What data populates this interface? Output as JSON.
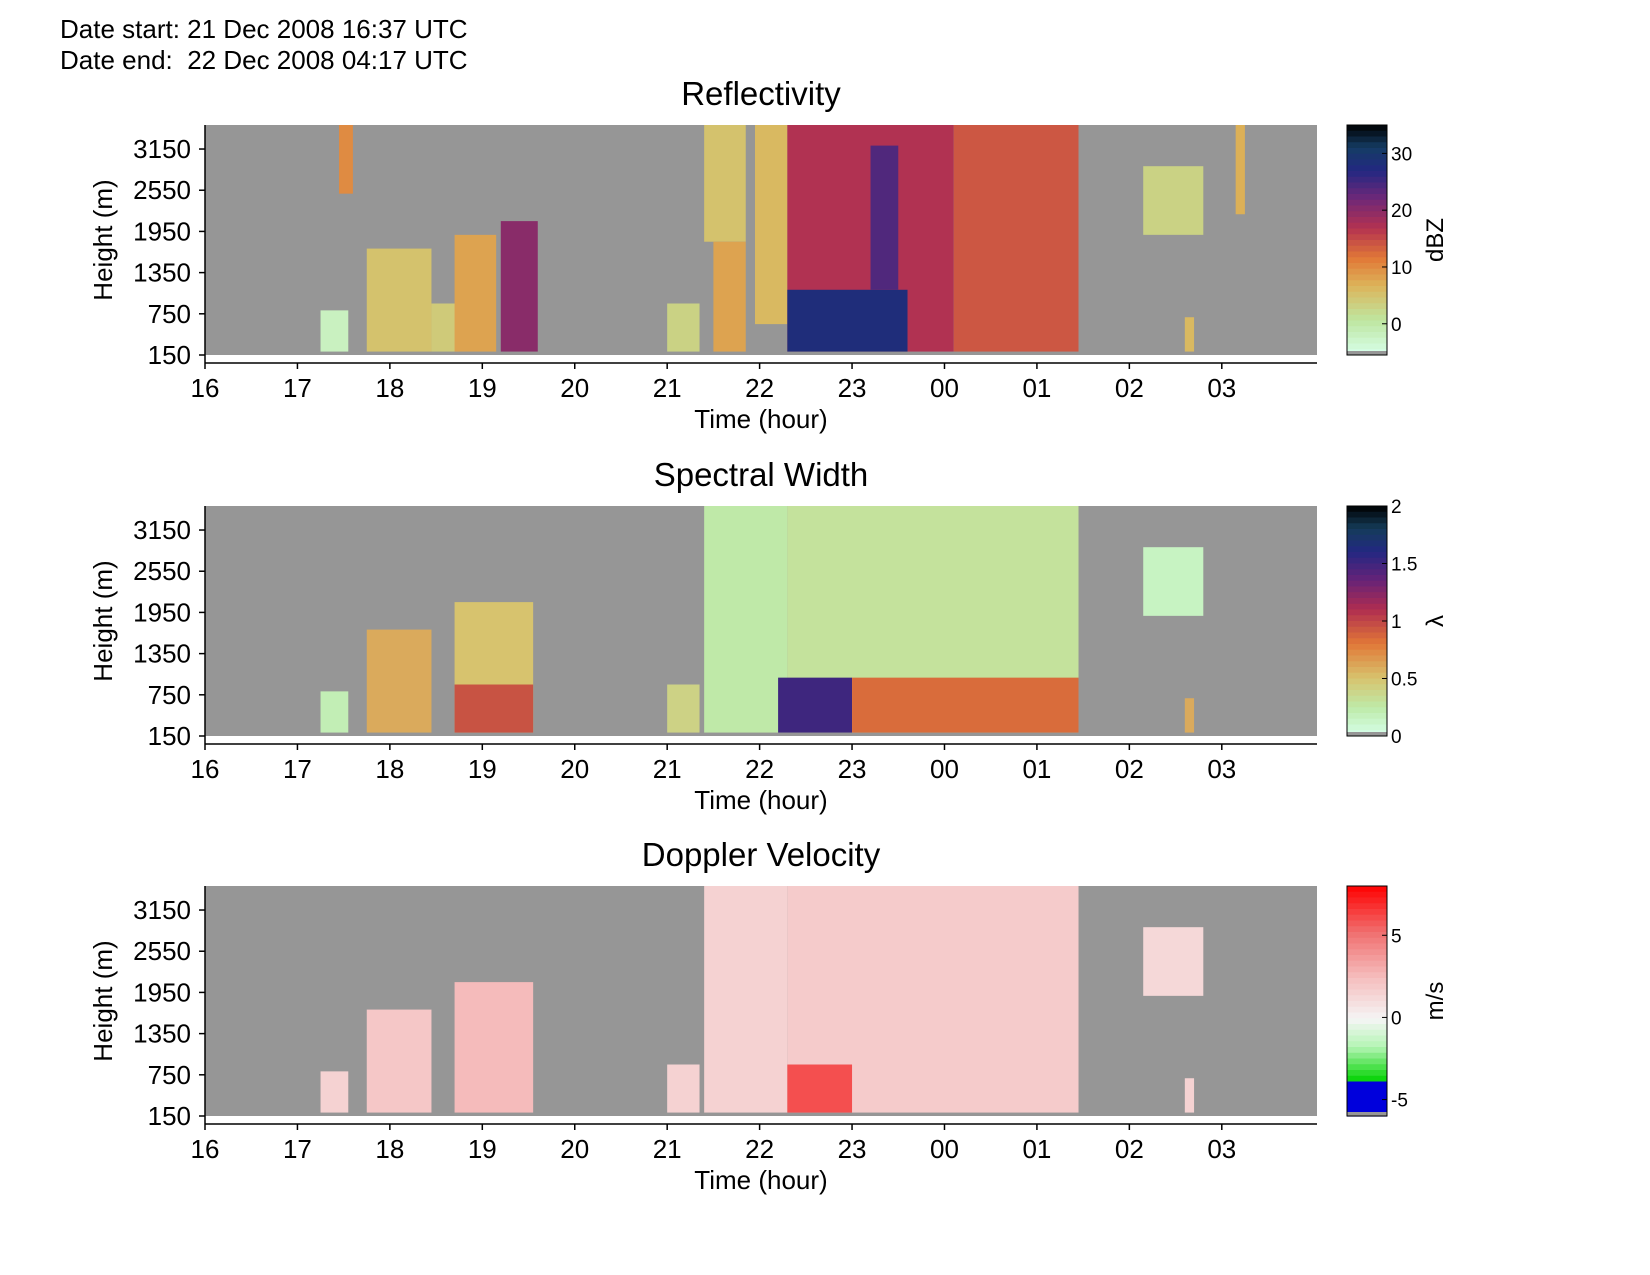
{
  "header": {
    "date_start": "Date start: 21 Dec 2008 16:37 UTC",
    "date_end": "Date end:  22 Dec 2008 04:17 UTC"
  },
  "chart_data": [
    {
      "type": "heatmap",
      "title": "Reflectivity",
      "xlabel": "Time (hour)",
      "ylabel": "Height (m)",
      "x_ticks": [
        "16",
        "17",
        "18",
        "19",
        "20",
        "21",
        "22",
        "23",
        "00",
        "01",
        "02",
        "03"
      ],
      "y_ticks": [
        "150",
        "750",
        "1350",
        "1950",
        "2550",
        "3150"
      ],
      "xlim_hours": [
        16,
        28.03
      ],
      "ylim_m": [
        150,
        3500
      ],
      "colorbar": {
        "label": "dBZ",
        "ticks": [
          "0",
          "10",
          "20",
          "30"
        ],
        "min": -5.5,
        "max": 35
      },
      "missing_color": "#969696",
      "regions": [
        {
          "t0": 17.25,
          "t1": 17.55,
          "h0": 200,
          "h1": 800,
          "v": -2
        },
        {
          "t0": 17.75,
          "t1": 18.45,
          "h0": 200,
          "h1": 1700,
          "v": 5
        },
        {
          "t0": 18.45,
          "t1": 18.75,
          "h0": 200,
          "h1": 900,
          "v": 4
        },
        {
          "t0": 18.7,
          "t1": 19.15,
          "h0": 200,
          "h1": 1900,
          "v": 8
        },
        {
          "t0": 19.2,
          "t1": 19.6,
          "h0": 200,
          "h1": 2100,
          "v": 20
        },
        {
          "t0": 17.45,
          "t1": 17.6,
          "h0": 2500,
          "h1": 3500,
          "v": 10
        },
        {
          "t0": 21.0,
          "t1": 21.35,
          "h0": 200,
          "h1": 900,
          "v": 3
        },
        {
          "t0": 21.4,
          "t1": 21.85,
          "h0": 1800,
          "h1": 3500,
          "v": 5
        },
        {
          "t0": 21.5,
          "t1": 21.85,
          "h0": 200,
          "h1": 1800,
          "v": 8
        },
        {
          "t0": 21.95,
          "t1": 22.3,
          "h0": 600,
          "h1": 3500,
          "v": 6
        },
        {
          "t0": 22.3,
          "t1": 24.1,
          "h0": 200,
          "h1": 3500,
          "v": 17
        },
        {
          "t0": 22.3,
          "t1": 23.6,
          "h0": 200,
          "h1": 1100,
          "v": 28
        },
        {
          "t0": 24.1,
          "t1": 25.45,
          "h0": 200,
          "h1": 3500,
          "v": 14
        },
        {
          "t0": 23.2,
          "t1": 23.5,
          "h0": 1100,
          "h1": 3200,
          "v": 24
        },
        {
          "t0": 26.15,
          "t1": 26.8,
          "h0": 1900,
          "h1": 2900,
          "v": 3
        },
        {
          "t0": 26.6,
          "t1": 26.7,
          "h0": 200,
          "h1": 700,
          "v": 6
        },
        {
          "t0": 27.15,
          "t1": 27.25,
          "h0": 2200,
          "h1": 3500,
          "v": 7
        }
      ]
    },
    {
      "type": "heatmap",
      "title": "Spectral Width",
      "xlabel": "Time (hour)",
      "ylabel": "Height (m)",
      "x_ticks": [
        "16",
        "17",
        "18",
        "19",
        "20",
        "21",
        "22",
        "23",
        "00",
        "01",
        "02",
        "03"
      ],
      "y_ticks": [
        "150",
        "750",
        "1350",
        "1950",
        "2550",
        "3150"
      ],
      "xlim_hours": [
        16,
        28.03
      ],
      "ylim_m": [
        150,
        3500
      ],
      "colorbar": {
        "label": "λ",
        "ticks": [
          "0",
          "0.5",
          "1",
          "1.5",
          "2"
        ],
        "min": 0,
        "max": 2
      },
      "missing_color": "#969696",
      "regions": [
        {
          "t0": 17.25,
          "t1": 17.55,
          "h0": 200,
          "h1": 800,
          "v": 0.2
        },
        {
          "t0": 17.75,
          "t1": 18.45,
          "h0": 200,
          "h1": 1700,
          "v": 0.6
        },
        {
          "t0": 18.7,
          "t1": 19.55,
          "h0": 200,
          "h1": 2100,
          "v": 0.5
        },
        {
          "t0": 18.7,
          "t1": 19.55,
          "h0": 200,
          "h1": 900,
          "v": 0.95
        },
        {
          "t0": 21.0,
          "t1": 21.35,
          "h0": 200,
          "h1": 900,
          "v": 0.4
        },
        {
          "t0": 21.4,
          "t1": 22.3,
          "h0": 200,
          "h1": 3500,
          "v": 0.25
        },
        {
          "t0": 22.3,
          "t1": 25.45,
          "h0": 200,
          "h1": 3500,
          "v": 0.3
        },
        {
          "t0": 22.2,
          "t1": 23.0,
          "h0": 200,
          "h1": 1000,
          "v": 1.5
        },
        {
          "t0": 23.0,
          "t1": 25.45,
          "h0": 200,
          "h1": 1000,
          "v": 0.85
        },
        {
          "t0": 26.15,
          "t1": 26.8,
          "h0": 1900,
          "h1": 2900,
          "v": 0.15
        },
        {
          "t0": 26.6,
          "t1": 26.7,
          "h0": 200,
          "h1": 700,
          "v": 0.6
        }
      ]
    },
    {
      "type": "heatmap",
      "title": "Doppler Velocity",
      "xlabel": "Time (hour)",
      "ylabel": "Height (m)",
      "x_ticks": [
        "16",
        "17",
        "18",
        "19",
        "20",
        "21",
        "22",
        "23",
        "00",
        "01",
        "02",
        "03"
      ],
      "y_ticks": [
        "150",
        "750",
        "1350",
        "1950",
        "2550",
        "3150"
      ],
      "xlim_hours": [
        16,
        28.03
      ],
      "ylim_m": [
        150,
        3500
      ],
      "colorbar": {
        "label": "m/s",
        "ticks": [
          "-5",
          "0",
          "5"
        ],
        "min": -6,
        "max": 8
      },
      "missing_color": "#969696",
      "regions": [
        {
          "t0": 17.25,
          "t1": 17.55,
          "h0": 200,
          "h1": 800,
          "v": 1.5
        },
        {
          "t0": 17.75,
          "t1": 18.45,
          "h0": 200,
          "h1": 1700,
          "v": 2.0
        },
        {
          "t0": 18.7,
          "t1": 19.55,
          "h0": 200,
          "h1": 2100,
          "v": 2.5
        },
        {
          "t0": 21.0,
          "t1": 21.35,
          "h0": 200,
          "h1": 900,
          "v": 1.5
        },
        {
          "t0": 21.4,
          "t1": 22.3,
          "h0": 200,
          "h1": 3500,
          "v": 1.5
        },
        {
          "t0": 22.3,
          "t1": 25.45,
          "h0": 200,
          "h1": 3500,
          "v": 1.8
        },
        {
          "t0": 22.3,
          "t1": 23.0,
          "h0": 200,
          "h1": 900,
          "v": 6
        },
        {
          "t0": 26.15,
          "t1": 26.8,
          "h0": 1900,
          "h1": 2900,
          "v": 1.2
        },
        {
          "t0": 26.6,
          "t1": 26.7,
          "h0": 200,
          "h1": 700,
          "v": 1.5
        }
      ]
    }
  ]
}
